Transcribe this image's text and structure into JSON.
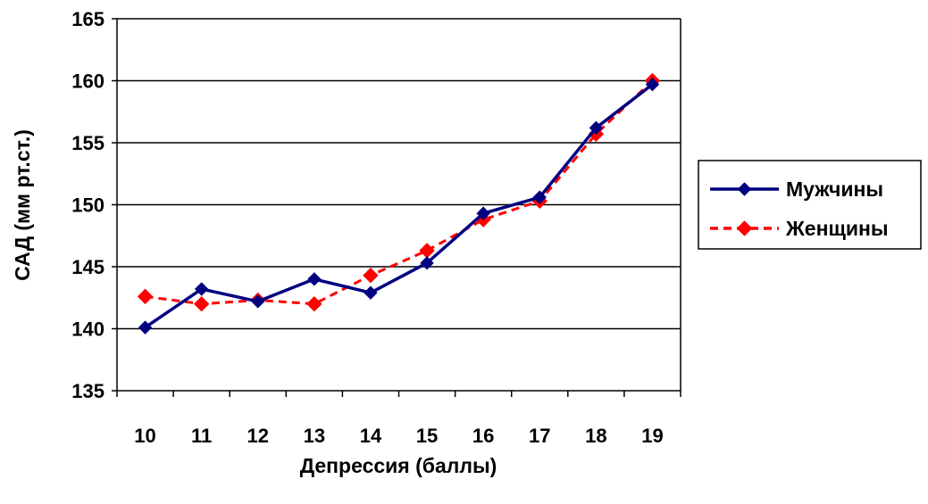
{
  "chart_data": {
    "type": "line",
    "title": "",
    "xlabel": "Депрессия (баллы)",
    "ylabel": "САД (мм рт.ст.)",
    "categories": [
      "10",
      "11",
      "12",
      "13",
      "14",
      "15",
      "16",
      "17",
      "18",
      "19"
    ],
    "ylim": [
      135,
      165
    ],
    "yticks": [
      "135",
      "140",
      "145",
      "150",
      "155",
      "160",
      "165"
    ],
    "grid": "horizontal",
    "legend_position": "right",
    "series": [
      {
        "name": "Мужчины",
        "values": [
          140.1,
          143.2,
          142.2,
          144.0,
          142.9,
          145.3,
          149.3,
          150.6,
          156.2,
          159.7
        ],
        "color": "#000080",
        "line_style": "solid",
        "marker": "diamond"
      },
      {
        "name": "Женщины",
        "values": [
          142.6,
          142.0,
          142.3,
          142.0,
          144.3,
          146.3,
          148.8,
          150.3,
          155.7,
          160.0
        ],
        "color": "#ff0000",
        "line_style": "dashed",
        "marker": "diamond"
      }
    ]
  }
}
